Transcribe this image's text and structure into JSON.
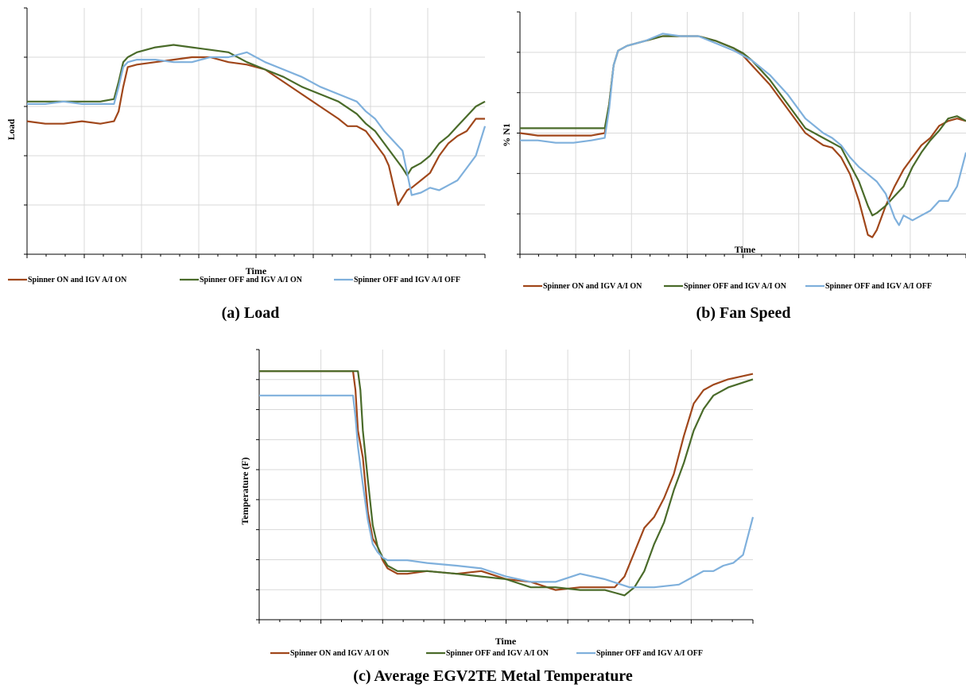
{
  "figure": {
    "captions": [
      "(a) Load",
      "(b) Fan Speed",
      "(c) Average EGV2TE Metal Temperature"
    ]
  },
  "series_colors": [
    "#a0471b",
    "#4a6b2a",
    "#7fb0dc"
  ],
  "chart_data": [
    {
      "type": "line",
      "title": "",
      "xlabel": "Time",
      "ylabel": "Load",
      "xlim": [
        0,
        100
      ],
      "ylim": [
        0,
        100
      ],
      "x_gridlines": 8,
      "y_gridlines": 5,
      "grid": true,
      "legend_position": "bottom",
      "series": [
        {
          "name": "Spinner ON  and IGV A/I ON",
          "x": [
            0,
            4,
            8,
            12,
            16,
            19,
            20,
            21,
            22,
            24,
            28,
            32,
            36,
            40,
            44,
            48,
            52,
            56,
            60,
            64,
            68,
            70,
            72,
            74,
            76,
            78,
            79,
            80,
            81,
            82,
            83,
            84,
            86,
            88,
            90,
            92,
            94,
            96,
            98,
            100
          ],
          "values": [
            54,
            53,
            53,
            54,
            53,
            54,
            58,
            68,
            76,
            77,
            78,
            79,
            80,
            80,
            78,
            77,
            75,
            70,
            65,
            60,
            55,
            52,
            52,
            50,
            45,
            40,
            36,
            28,
            20,
            23,
            26,
            27,
            30,
            33,
            40,
            45,
            48,
            50,
            55,
            55
          ]
        },
        {
          "name": "Spinner OFF and IGV A/I ON",
          "x": [
            0,
            4,
            8,
            12,
            16,
            19,
            20,
            21,
            22,
            24,
            28,
            32,
            36,
            40,
            44,
            48,
            52,
            56,
            60,
            64,
            68,
            72,
            74,
            76,
            78,
            80,
            82,
            83,
            84,
            86,
            88,
            90,
            92,
            94,
            96,
            98,
            100
          ],
          "values": [
            62,
            62,
            62,
            62,
            62,
            63,
            70,
            78,
            80,
            82,
            84,
            85,
            84,
            83,
            82,
            78,
            75,
            72,
            68,
            65,
            62,
            57,
            53,
            50,
            45,
            40,
            35,
            32,
            35,
            37,
            40,
            45,
            48,
            52,
            56,
            60,
            62
          ]
        },
        {
          "name": "Spinner OFF and IGV A/I OFF",
          "x": [
            0,
            4,
            8,
            12,
            16,
            19,
            20,
            21,
            22,
            24,
            28,
            32,
            36,
            40,
            44,
            48,
            52,
            56,
            60,
            64,
            68,
            72,
            74,
            76,
            78,
            80,
            82,
            83,
            84,
            86,
            88,
            90,
            92,
            94,
            96,
            98,
            100
          ],
          "values": [
            61,
            61,
            62,
            61,
            61,
            61,
            68,
            76,
            78,
            79,
            79,
            78,
            78,
            80,
            80,
            82,
            78,
            75,
            72,
            68,
            65,
            62,
            58,
            55,
            50,
            46,
            42,
            33,
            24,
            25,
            27,
            26,
            28,
            30,
            35,
            40,
            52
          ]
        }
      ]
    },
    {
      "type": "line",
      "title": "",
      "xlabel": "Time",
      "ylabel": "% N1",
      "xlim": [
        0,
        100
      ],
      "ylim": [
        0,
        100
      ],
      "x_gridlines": 8,
      "y_gridlines": 6,
      "grid": true,
      "legend_position": "bottom",
      "series": [
        {
          "name": "Spinner ON and IGV A/I ON",
          "x": [
            0,
            4,
            8,
            12,
            16,
            19,
            20,
            21,
            22,
            24,
            28,
            32,
            36,
            40,
            44,
            48,
            50,
            52,
            56,
            60,
            64,
            68,
            70,
            72,
            74,
            76,
            77,
            78,
            79,
            80,
            82,
            84,
            86,
            88,
            90,
            92,
            94,
            96,
            98,
            100
          ],
          "values": [
            50,
            49,
            49,
            49,
            49,
            50,
            62,
            78,
            84,
            86,
            88,
            90,
            90,
            90,
            88,
            85,
            82,
            78,
            70,
            60,
            50,
            45,
            44,
            40,
            33,
            22,
            15,
            8,
            7,
            10,
            20,
            28,
            35,
            40,
            45,
            48,
            53,
            55,
            56,
            55
          ]
        },
        {
          "name": "Spinner OFF and IGV A/I ON",
          "x": [
            0,
            4,
            8,
            12,
            16,
            19,
            20,
            21,
            22,
            24,
            28,
            32,
            36,
            40,
            44,
            48,
            50,
            52,
            56,
            60,
            64,
            68,
            70,
            72,
            74,
            76,
            78,
            79,
            80,
            82,
            84,
            86,
            88,
            90,
            92,
            94,
            96,
            98,
            100
          ],
          "values": [
            52,
            52,
            52,
            52,
            52,
            52,
            62,
            78,
            84,
            86,
            88,
            90,
            90,
            90,
            88,
            85,
            83,
            80,
            72,
            62,
            52,
            48,
            46,
            44,
            37,
            30,
            20,
            16,
            17,
            20,
            24,
            28,
            36,
            42,
            47,
            51,
            56,
            57,
            55
          ]
        },
        {
          "name": "Spinner OFF and IGV A/I OFF",
          "x": [
            0,
            4,
            8,
            12,
            16,
            19,
            20,
            21,
            22,
            24,
            28,
            32,
            36,
            40,
            44,
            48,
            50,
            52,
            56,
            60,
            64,
            68,
            70,
            72,
            74,
            76,
            78,
            80,
            82,
            84,
            85,
            86,
            88,
            90,
            92,
            94,
            96,
            98,
            100
          ],
          "values": [
            47,
            47,
            46,
            46,
            47,
            48,
            60,
            78,
            84,
            86,
            88,
            91,
            90,
            90,
            87,
            84,
            82,
            80,
            74,
            66,
            56,
            50,
            48,
            45,
            40,
            36,
            33,
            30,
            25,
            15,
            12,
            16,
            14,
            16,
            18,
            22,
            22,
            28,
            42
          ]
        }
      ]
    },
    {
      "type": "line",
      "title": "",
      "xlabel": "Time",
      "ylabel": "Temperature (F)",
      "xlim": [
        0,
        100
      ],
      "ylim": [
        0,
        100
      ],
      "x_gridlines": 8,
      "y_gridlines": 9,
      "grid": true,
      "legend_position": "bottom",
      "series": [
        {
          "name": "Spinner ON and IGV A/I ON",
          "x": [
            0,
            5,
            10,
            15,
            19,
            19.5,
            20,
            21,
            22,
            23,
            24,
            25,
            26,
            28,
            30,
            34,
            40,
            45,
            50,
            55,
            60,
            65,
            70,
            72,
            74,
            76,
            78,
            80,
            82,
            84,
            86,
            88,
            90,
            92,
            95,
            100
          ],
          "values": [
            92,
            92,
            92,
            92,
            92,
            85,
            70,
            60,
            40,
            30,
            27,
            22,
            19,
            17,
            17,
            18,
            17,
            18,
            15,
            14,
            11,
            12,
            12,
            12,
            16,
            25,
            34,
            38,
            45,
            54,
            68,
            80,
            85,
            87,
            89,
            91
          ]
        },
        {
          "name": "Spinner OFF and IGV A/I ON",
          "x": [
            0,
            5,
            10,
            15,
            20,
            20.5,
            21,
            22,
            23,
            24,
            25,
            26,
            28,
            30,
            34,
            40,
            45,
            50,
            55,
            60,
            65,
            70,
            72,
            74,
            76,
            78,
            80,
            82,
            84,
            86,
            88,
            90,
            92,
            95,
            100
          ],
          "values": [
            92,
            92,
            92,
            92,
            92,
            85,
            70,
            52,
            35,
            27,
            23,
            20,
            18,
            18,
            18,
            17,
            16,
            15,
            12,
            12,
            11,
            11,
            10,
            9,
            12,
            18,
            28,
            36,
            48,
            58,
            70,
            78,
            83,
            86,
            89
          ]
        },
        {
          "name": "Spinner OFF and IGV A/I OFF",
          "x": [
            0,
            5,
            10,
            15,
            19,
            19.5,
            20,
            21,
            22,
            23,
            24,
            25,
            26,
            28,
            30,
            34,
            40,
            45,
            50,
            55,
            60,
            65,
            70,
            75,
            80,
            85,
            88,
            90,
            92,
            94,
            96,
            98,
            100
          ],
          "values": [
            83,
            83,
            83,
            83,
            83,
            75,
            64,
            50,
            37,
            28,
            25,
            23,
            22,
            22,
            22,
            21,
            20,
            19,
            16,
            14,
            14,
            17,
            15,
            12,
            12,
            13,
            16,
            18,
            18,
            20,
            21,
            24,
            38
          ]
        }
      ]
    }
  ]
}
